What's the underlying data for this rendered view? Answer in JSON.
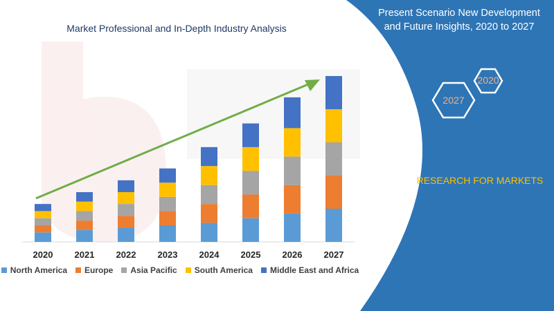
{
  "header": {
    "chart_title": "Market Professional and In-Depth Industry Analysis",
    "panel_title_line1": "Present Scenario New Development",
    "panel_title_line2": "and Future Insights, 2020 to 2027",
    "research_label": "RESEARCH FOR MARKETS",
    "hex_back_label": "2020",
    "hex_front_label": "2027"
  },
  "colors": {
    "panel_blue": "#2e75b6",
    "arrow_green": "#70ad47",
    "accent_yellow": "#ffc000",
    "hex_orange": "#f4b183"
  },
  "chart_data": {
    "type": "bar",
    "stacked": true,
    "categories": [
      "2020",
      "2021",
      "2022",
      "2023",
      "2024",
      "2025",
      "2026",
      "2027"
    ],
    "series": [
      {
        "name": "North America",
        "color": "#5b9bd5",
        "values": [
          2,
          2.5,
          3,
          3.5,
          4,
          5,
          6,
          7
        ]
      },
      {
        "name": "Europe",
        "color": "#ed7d31",
        "values": [
          1.5,
          2,
          2.5,
          3,
          4,
          5,
          6,
          7
        ]
      },
      {
        "name": "Asia Pacific",
        "color": "#a5a5a5",
        "values": [
          1.5,
          2,
          2.5,
          3,
          4,
          5,
          6,
          7
        ]
      },
      {
        "name": "South America",
        "color": "#ffc000",
        "values": [
          1.5,
          2,
          2.5,
          3,
          4,
          5,
          6,
          7
        ]
      },
      {
        "name": "Middle East and Africa",
        "color": "#4472c4",
        "values": [
          1.5,
          2,
          2.5,
          3,
          4,
          5,
          6.5,
          7
        ]
      }
    ],
    "ylim": [
      0,
      35
    ],
    "grid": false,
    "legend_position": "bottom",
    "trend_arrow": true
  }
}
